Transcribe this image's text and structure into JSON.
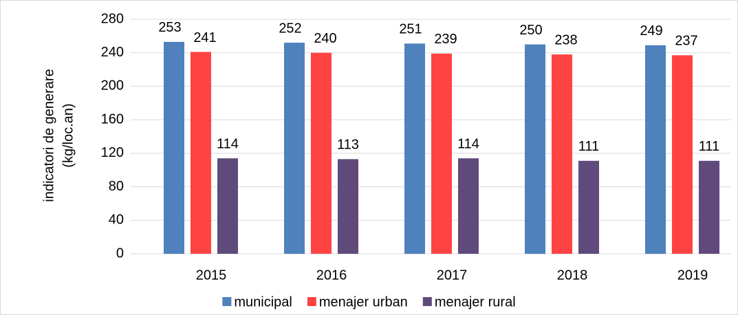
{
  "chart_data": {
    "type": "bar",
    "y_label": [
      "indicatori  de generare",
      "(kg/loc.an)"
    ],
    "categories": [
      "2015",
      "2016",
      "2017",
      "2018",
      "2019"
    ],
    "series": [
      {
        "name": "municipal",
        "color": "#4f81bd",
        "values": [
          253,
          252,
          251,
          250,
          249
        ]
      },
      {
        "name": "menajer urban",
        "color": "#ff4343",
        "values": [
          241,
          240,
          239,
          238,
          237
        ]
      },
      {
        "name": "menajer rural",
        "color": "#604a7b",
        "values": [
          114,
          113,
          114,
          111,
          111
        ]
      }
    ],
    "ylim": [
      0,
      280
    ],
    "yticks": [
      0,
      40,
      80,
      120,
      160,
      200,
      240,
      280
    ],
    "grid": true
  }
}
